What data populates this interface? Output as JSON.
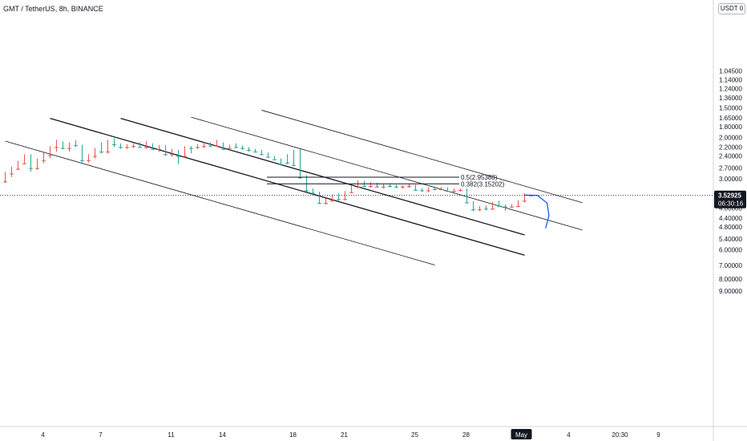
{
  "header": {
    "symbol": "GMT / TetherUS, 8h, BINANCE",
    "currency": "USDT 0"
  },
  "colors": {
    "up": "#26a69a",
    "down": "#ef5350",
    "zone_fill": "#7b9ff5",
    "zone_border": "#2962ff",
    "channel": "#131722",
    "price_label": "#131722",
    "projection": "#2962ff"
  },
  "chart_data": {
    "type": "candlestick",
    "scale": "log",
    "ylim": [
      1.0,
      10.0
    ],
    "y_ticks": [
      {
        "value": 9.0,
        "label": "9.00000"
      },
      {
        "value": 8.0,
        "label": "8.00000"
      },
      {
        "value": 7.0,
        "label": "7.00000"
      },
      {
        "value": 6.0,
        "label": "6.00000"
      },
      {
        "value": 5.4,
        "label": "5.40000"
      },
      {
        "value": 4.8,
        "label": "4.80000"
      },
      {
        "value": 4.4,
        "label": "4.40000"
      },
      {
        "value": 4.0,
        "label": "4.00000"
      },
      {
        "value": 3.0,
        "label": "3.00000"
      },
      {
        "value": 2.7,
        "label": "2.70000"
      },
      {
        "value": 2.4,
        "label": "2.40000"
      },
      {
        "value": 2.2,
        "label": "2.20000"
      },
      {
        "value": 2.0,
        "label": "2.00000"
      },
      {
        "value": 1.8,
        "label": "1.80000"
      },
      {
        "value": 1.65,
        "label": "1.65000"
      },
      {
        "value": 1.5,
        "label": "1.50000"
      },
      {
        "value": 1.36,
        "label": "1.36000"
      },
      {
        "value": 1.24,
        "label": "1.24000"
      },
      {
        "value": 1.14,
        "label": "1.14000"
      },
      {
        "value": 1.045,
        "label": "1.04500"
      }
    ],
    "x_ticks": [
      {
        "bar": 6,
        "label": "4"
      },
      {
        "bar": 15,
        "label": "7"
      },
      {
        "bar": 26,
        "label": "11"
      },
      {
        "bar": 34,
        "label": "14"
      },
      {
        "bar": 45,
        "label": "18"
      },
      {
        "bar": 53,
        "label": "21"
      },
      {
        "bar": 64,
        "label": "25"
      },
      {
        "bar": 72,
        "label": "28"
      },
      {
        "bar": 80,
        "label": "May"
      },
      {
        "bar": 88,
        "label": "4"
      },
      {
        "bar": 96,
        "label": "20:30"
      },
      {
        "bar": 102,
        "label": "9"
      }
    ],
    "x_highlight": "May",
    "current_price": {
      "value": 3.52925,
      "label": "3.52925",
      "countdown": "06:30:16"
    },
    "fib_levels": [
      {
        "ratio": "0.382",
        "price": 3.15202,
        "label": "0.382(3.15202)"
      },
      {
        "ratio": "0.5",
        "price": 2.95388,
        "label": "0.5(2.95388)"
      }
    ],
    "zone": {
      "from_bar": 0,
      "to_bar": 95,
      "low": 2.92,
      "high": 3.12
    },
    "channel": {
      "bar0": 0,
      "price0": 1.2,
      "bar1": 80,
      "price1": 5.1,
      "offsets": [
        1.73,
        1.22,
        1.0,
        0.81,
        0.62
      ],
      "ranges": [
        [
          0,
          67
        ],
        [
          7,
          81
        ],
        [
          18,
          81
        ],
        [
          29,
          90
        ],
        [
          40,
          90
        ]
      ]
    },
    "projection": [
      [
        81,
        3.52
      ],
      [
        83,
        3.53
      ],
      [
        84.5,
        3.8
      ],
      [
        84.8,
        4.3
      ],
      [
        84.3,
        4.85
      ]
    ],
    "candles": [
      [
        3.08,
        3.12,
        2.8,
        2.85
      ],
      [
        2.85,
        2.95,
        2.66,
        2.7
      ],
      [
        2.72,
        2.76,
        2.52,
        2.56
      ],
      [
        2.58,
        2.6,
        2.36,
        2.4
      ],
      [
        2.4,
        2.8,
        2.36,
        2.7
      ],
      [
        2.7,
        2.75,
        2.46,
        2.5
      ],
      [
        2.5,
        2.58,
        2.3,
        2.36
      ],
      [
        2.38,
        2.45,
        2.18,
        2.2
      ],
      [
        2.2,
        2.3,
        2.05,
        2.12
      ],
      [
        2.12,
        2.25,
        2.08,
        2.22
      ],
      [
        2.22,
        2.3,
        2.1,
        2.14
      ],
      [
        2.14,
        2.2,
        2.06,
        2.16
      ],
      [
        2.18,
        2.56,
        2.15,
        2.5
      ],
      [
        2.5,
        2.56,
        2.36,
        2.4
      ],
      [
        2.4,
        2.46,
        2.22,
        2.26
      ],
      [
        2.28,
        2.34,
        2.1,
        2.3
      ],
      [
        2.3,
        2.34,
        2.05,
        2.08
      ],
      [
        2.1,
        2.2,
        2.02,
        2.14
      ],
      [
        2.16,
        2.24,
        2.12,
        2.2
      ],
      [
        2.2,
        2.24,
        2.14,
        2.18
      ],
      [
        2.18,
        2.22,
        2.12,
        2.16
      ],
      [
        2.16,
        2.22,
        2.1,
        2.2
      ],
      [
        2.2,
        2.24,
        2.08,
        2.12
      ],
      [
        2.14,
        2.26,
        2.12,
        2.24
      ],
      [
        2.24,
        2.3,
        2.16,
        2.18
      ],
      [
        2.2,
        2.4,
        2.16,
        2.36
      ],
      [
        2.36,
        2.42,
        2.24,
        2.3
      ],
      [
        2.3,
        2.6,
        2.26,
        2.4
      ],
      [
        2.4,
        2.44,
        2.18,
        2.2
      ],
      [
        2.2,
        2.34,
        2.18,
        2.22
      ],
      [
        2.2,
        2.24,
        2.14,
        2.18
      ],
      [
        2.18,
        2.22,
        2.1,
        2.15
      ],
      [
        2.15,
        2.2,
        2.1,
        2.17
      ],
      [
        2.17,
        2.2,
        2.05,
        2.12
      ],
      [
        2.14,
        2.26,
        2.1,
        2.24
      ],
      [
        2.22,
        2.26,
        2.15,
        2.18
      ],
      [
        2.18,
        2.22,
        2.12,
        2.2
      ],
      [
        2.2,
        2.26,
        2.17,
        2.22
      ],
      [
        2.22,
        2.3,
        2.2,
        2.26
      ],
      [
        2.26,
        2.32,
        2.24,
        2.3
      ],
      [
        2.28,
        2.38,
        2.26,
        2.36
      ],
      [
        2.36,
        2.44,
        2.32,
        2.42
      ],
      [
        2.42,
        2.5,
        2.4,
        2.48
      ],
      [
        2.5,
        2.64,
        2.46,
        2.6
      ],
      [
        2.46,
        2.6,
        2.36,
        2.56
      ],
      [
        2.4,
        2.66,
        2.26,
        2.62
      ],
      [
        2.26,
        3.0,
        2.24,
        2.96
      ],
      [
        2.96,
        3.4,
        2.9,
        3.36
      ],
      [
        3.36,
        3.5,
        3.3,
        3.44
      ],
      [
        3.44,
        3.84,
        3.4,
        3.8
      ],
      [
        3.8,
        3.86,
        3.64,
        3.7
      ],
      [
        3.7,
        3.76,
        3.5,
        3.56
      ],
      [
        3.56,
        3.72,
        3.46,
        3.66
      ],
      [
        3.66,
        3.7,
        3.38,
        3.42
      ],
      [
        3.42,
        3.46,
        3.2,
        3.24
      ],
      [
        3.24,
        3.3,
        3.05,
        3.12
      ],
      [
        3.12,
        3.24,
        3.06,
        3.22
      ],
      [
        3.22,
        3.28,
        3.1,
        3.15
      ],
      [
        3.15,
        3.26,
        3.12,
        3.24
      ],
      [
        3.24,
        3.3,
        3.16,
        3.2
      ],
      [
        3.2,
        3.26,
        3.14,
        3.22
      ],
      [
        3.22,
        3.28,
        3.18,
        3.24
      ],
      [
        3.24,
        3.3,
        3.2,
        3.22
      ],
      [
        3.22,
        3.28,
        3.16,
        3.2
      ],
      [
        3.2,
        3.38,
        3.18,
        3.34
      ],
      [
        3.34,
        3.4,
        3.28,
        3.36
      ],
      [
        3.36,
        3.42,
        3.26,
        3.3
      ],
      [
        3.3,
        3.36,
        3.24,
        3.32
      ],
      [
        3.32,
        3.36,
        3.25,
        3.28
      ],
      [
        3.28,
        3.4,
        3.26,
        3.38
      ],
      [
        3.38,
        3.44,
        3.3,
        3.35
      ],
      [
        3.35,
        3.4,
        3.3,
        3.33
      ],
      [
        3.33,
        3.82,
        3.3,
        3.78
      ],
      [
        3.78,
        4.12,
        3.74,
        4.05
      ],
      [
        4.05,
        4.12,
        3.92,
        3.96
      ],
      [
        3.96,
        4.08,
        3.9,
        4.02
      ],
      [
        4.02,
        4.06,
        3.76,
        3.8
      ],
      [
        3.8,
        3.96,
        3.72,
        3.9
      ],
      [
        3.9,
        4.1,
        3.86,
        3.94
      ],
      [
        3.94,
        3.98,
        3.84,
        3.92
      ],
      [
        3.92,
        3.96,
        3.7,
        3.72
      ],
      [
        3.72,
        3.78,
        3.46,
        3.52
      ],
      [
        3.52,
        3.54,
        3.5,
        3.53
      ]
    ]
  }
}
